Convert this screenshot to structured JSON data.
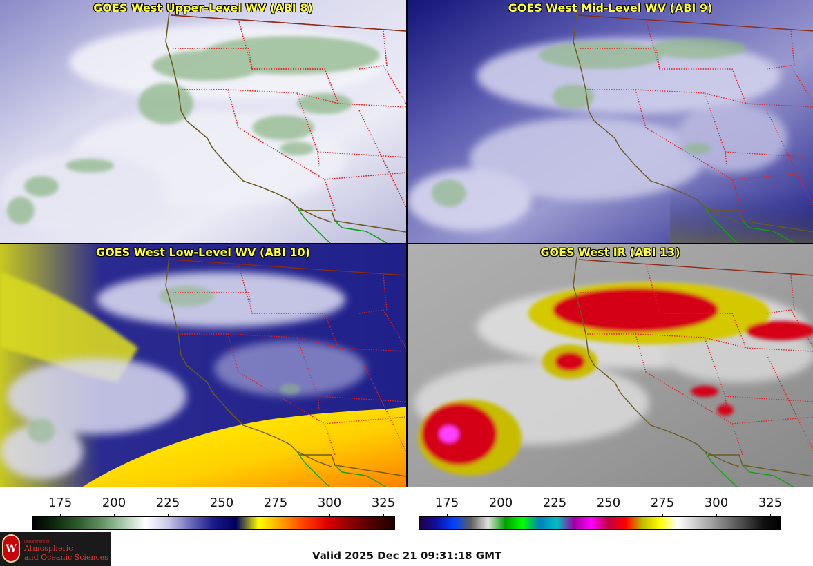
{
  "panels": [
    {
      "title": "GOES West Upper-Level WV (ABI 8)"
    },
    {
      "title": "GOES West Mid-Level WV (ABI 9)"
    },
    {
      "title": "GOES West Low-Level WV (ABI 10)"
    },
    {
      "title": "GOES West IR (ABI 13)"
    }
  ],
  "colorbars": {
    "wv": {
      "ticks": [
        "175",
        "200",
        "225",
        "250",
        "275",
        "300",
        "325"
      ],
      "stops": [
        "#000000",
        "#0d2a0d",
        "#2d5a2d",
        "#5f8f5f",
        "#a8c8a8",
        "#ffffff",
        "#c8c8e8",
        "#6a6ab8",
        "#1a1a8a",
        "#000060",
        "#ffff00",
        "#ffa000",
        "#ff4000",
        "#e00000",
        "#900000",
        "#500000",
        "#200000"
      ]
    },
    "ir": {
      "ticks": [
        "175",
        "200",
        "225",
        "250",
        "275",
        "300",
        "325"
      ],
      "stops": [
        "#200040",
        "#1010a0",
        "#0040ff",
        "#606060",
        "#e0e0e0",
        "#00a000",
        "#00ff00",
        "#0080c0",
        "#00c0c0",
        "#a000a0",
        "#ff00ff",
        "#c00040",
        "#ff0000",
        "#c0c000",
        "#ffff00",
        "#ffffff",
        "#d0d0d0",
        "#a0a0a0",
        "#707070",
        "#404040",
        "#101010",
        "#000000"
      ]
    }
  },
  "valid_time": "Valid 2025 Dec 21 09:31:18 GMT",
  "logo": {
    "dept": "Department of",
    "line1": "Atmospheric",
    "line2": "and Oceanic Sciences"
  },
  "colors": {
    "title_text": "#ffff33",
    "coast": "#6b5a1e",
    "state_border": "#e02020",
    "mexico_border": "#10a010"
  }
}
